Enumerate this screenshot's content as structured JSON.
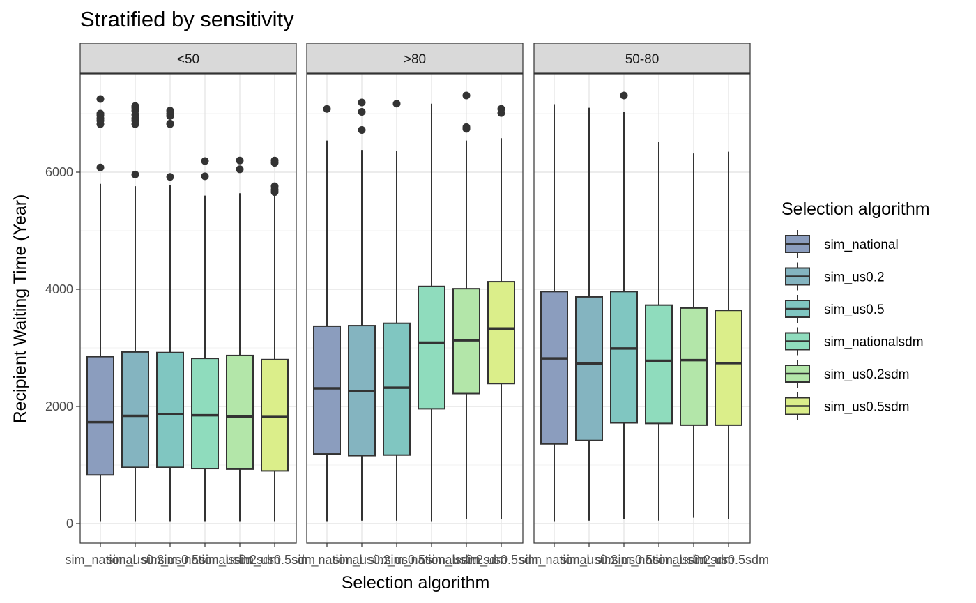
{
  "chart_data": {
    "type": "box",
    "title": "Stratified by sensitivity",
    "xlabel": "Selection algorithm",
    "ylabel": "Recipient Waiting Time (Year)",
    "ylim": [
      -300,
      7700
    ],
    "yticks": [
      0,
      2000,
      4000,
      6000
    ],
    "grid": true,
    "legend": {
      "title": "Selection algorithm",
      "position": "right",
      "items": [
        {
          "label": "sim_national",
          "color": "#8b9dbe"
        },
        {
          "label": "sim_us0.2",
          "color": "#84b4c0"
        },
        {
          "label": "sim_us0.5",
          "color": "#80c6c1"
        },
        {
          "label": "sim_nationalsdm",
          "color": "#8fdcbd"
        },
        {
          "label": "sim_us0.2sdm",
          "color": "#b3e6a9"
        },
        {
          "label": "sim_us0.5sdm",
          "color": "#dbee8a"
        }
      ]
    },
    "categories": [
      "sim_national",
      "sim_us0.2",
      "sim_us0.5",
      "sim_nationalsdm",
      "sim_us0.2sdm",
      "sim_us0.5sdm"
    ],
    "panels": [
      {
        "label": "<50",
        "boxes": [
          {
            "lower": 30,
            "q1": 830,
            "median": 1730,
            "q3": 2850,
            "upper": 5800,
            "outliers": [
              6080,
              6820,
              6880,
              6920,
              6970,
              7000,
              7250
            ]
          },
          {
            "lower": 30,
            "q1": 960,
            "median": 1840,
            "q3": 2930,
            "upper": 5760,
            "outliers": [
              5960,
              6820,
              6880,
              6920,
              6980,
              7050,
              7100,
              7130
            ]
          },
          {
            "lower": 30,
            "q1": 960,
            "median": 1870,
            "q3": 2920,
            "upper": 5780,
            "outliers": [
              5920,
              6820,
              6830,
              6960,
              7000,
              7050
            ]
          },
          {
            "lower": 30,
            "q1": 940,
            "median": 1850,
            "q3": 2820,
            "upper": 5600,
            "outliers": [
              5930,
              6190
            ]
          },
          {
            "lower": 30,
            "q1": 930,
            "median": 1830,
            "q3": 2870,
            "upper": 5640,
            "outliers": [
              6050,
              6200
            ]
          },
          {
            "lower": 30,
            "q1": 900,
            "median": 1820,
            "q3": 2800,
            "upper": 5640,
            "outliers": [
              5660,
              5700,
              5760,
              6160,
              6200
            ]
          }
        ]
      },
      {
        "label": ">80",
        "boxes": [
          {
            "lower": 30,
            "q1": 1190,
            "median": 2310,
            "q3": 3370,
            "upper": 6540,
            "outliers": [
              7080
            ]
          },
          {
            "lower": 50,
            "q1": 1160,
            "median": 2260,
            "q3": 3380,
            "upper": 6380,
            "outliers": [
              6720,
              7030,
              7190
            ]
          },
          {
            "lower": 50,
            "q1": 1170,
            "median": 2320,
            "q3": 3420,
            "upper": 6360,
            "outliers": [
              7170
            ]
          },
          {
            "lower": 30,
            "q1": 1960,
            "median": 3090,
            "q3": 4050,
            "upper": 7170,
            "outliers": []
          },
          {
            "lower": 80,
            "q1": 2220,
            "median": 3130,
            "q3": 4010,
            "upper": 6540,
            "outliers": [
              6740,
              6770,
              7310
            ]
          },
          {
            "lower": 80,
            "q1": 2390,
            "median": 3330,
            "q3": 4130,
            "upper": 6580,
            "outliers": [
              7010,
              7080
            ]
          }
        ]
      },
      {
        "label": "50-80",
        "boxes": [
          {
            "lower": 30,
            "q1": 1360,
            "median": 2820,
            "q3": 3960,
            "upper": 7160,
            "outliers": []
          },
          {
            "lower": 50,
            "q1": 1420,
            "median": 2730,
            "q3": 3870,
            "upper": 7100,
            "outliers": []
          },
          {
            "lower": 80,
            "q1": 1720,
            "median": 2990,
            "q3": 3960,
            "upper": 7030,
            "outliers": [
              7310
            ]
          },
          {
            "lower": 50,
            "q1": 1710,
            "median": 2780,
            "q3": 3730,
            "upper": 6520,
            "outliers": []
          },
          {
            "lower": 100,
            "q1": 1680,
            "median": 2790,
            "q3": 3680,
            "upper": 6320,
            "outliers": []
          },
          {
            "lower": 80,
            "q1": 1680,
            "median": 2740,
            "q3": 3640,
            "upper": 6350,
            "outliers": []
          }
        ]
      }
    ]
  }
}
